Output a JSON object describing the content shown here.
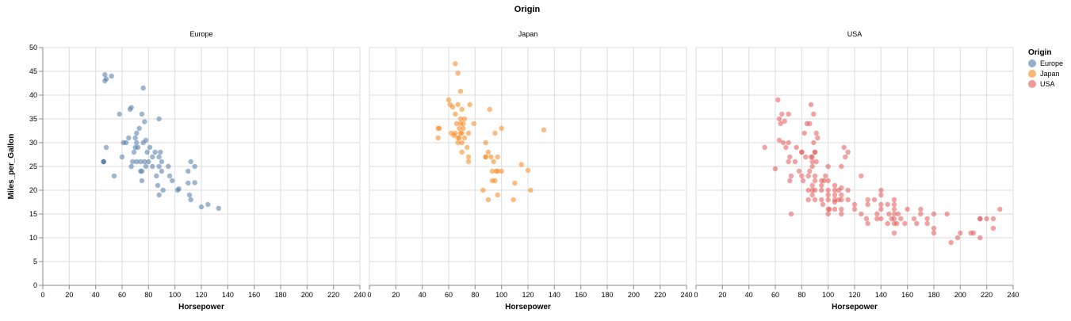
{
  "chart_data": {
    "type": "scatter",
    "title": "Origin",
    "facet_field": "Origin",
    "xlabel": "Horsepower",
    "ylabel": "Miles_per_Gallon",
    "xlim": [
      0,
      240
    ],
    "ylim": [
      0,
      50
    ],
    "x_ticks": [
      0,
      20,
      40,
      60,
      80,
      100,
      120,
      140,
      160,
      180,
      200,
      220,
      240
    ],
    "y_ticks": [
      0,
      5,
      10,
      15,
      20,
      25,
      30,
      35,
      40,
      45,
      50
    ],
    "grid": true,
    "legend": {
      "title": "Origin",
      "placement": "right",
      "items": [
        {
          "label": "Europe",
          "color": "#4c78a8"
        },
        {
          "label": "Japan",
          "color": "#f58518"
        },
        {
          "label": "USA",
          "color": "#e45756"
        }
      ]
    },
    "series": [
      {
        "name": "Europe",
        "color": "#4c78a8",
        "points": [
          [
            46,
            26
          ],
          [
            46,
            26
          ],
          [
            46,
            26
          ],
          [
            47,
            43
          ],
          [
            47,
            44.3
          ],
          [
            48,
            43.4
          ],
          [
            48,
            29
          ],
          [
            52,
            44
          ],
          [
            54,
            23
          ],
          [
            58,
            36
          ],
          [
            60,
            27
          ],
          [
            61,
            30
          ],
          [
            63,
            30
          ],
          [
            65,
            31
          ],
          [
            66,
            37
          ],
          [
            67,
            37.4
          ],
          [
            67,
            25
          ],
          [
            68,
            26
          ],
          [
            69,
            28
          ],
          [
            70,
            31
          ],
          [
            70,
            29
          ],
          [
            71,
            30
          ],
          [
            71,
            32
          ],
          [
            71,
            26
          ],
          [
            72,
            29
          ],
          [
            73,
            33
          ],
          [
            74,
            26
          ],
          [
            74,
            24
          ],
          [
            75,
            24
          ],
          [
            75,
            22
          ],
          [
            75,
            36
          ],
          [
            76,
            30
          ],
          [
            76,
            41.5
          ],
          [
            77,
            26
          ],
          [
            77,
            34.4
          ],
          [
            78,
            30.5
          ],
          [
            78,
            25
          ],
          [
            79,
            28
          ],
          [
            80,
            26
          ],
          [
            81,
            29
          ],
          [
            83,
            25
          ],
          [
            83,
            27
          ],
          [
            85,
            28
          ],
          [
            86,
            23
          ],
          [
            87,
            21
          ],
          [
            88,
            35
          ],
          [
            88,
            19
          ],
          [
            88,
            27
          ],
          [
            88,
            25
          ],
          [
            89,
            28
          ],
          [
            90,
            26
          ],
          [
            90,
            24
          ],
          [
            91,
            20
          ],
          [
            95,
            25
          ],
          [
            96,
            23
          ],
          [
            98,
            22
          ],
          [
            102,
            20
          ],
          [
            103,
            20.3
          ],
          [
            110,
            24
          ],
          [
            110,
            21.5
          ],
          [
            111,
            19
          ],
          [
            112,
            18
          ],
          [
            112,
            26
          ],
          [
            115,
            25
          ],
          [
            115,
            21.6
          ],
          [
            120,
            16.5
          ],
          [
            125,
            17
          ],
          [
            133,
            16.2
          ]
        ]
      },
      {
        "name": "Japan",
        "color": "#f58518",
        "points": [
          [
            52,
            31
          ],
          [
            52,
            33
          ],
          [
            53,
            33
          ],
          [
            60,
            39
          ],
          [
            61,
            38
          ],
          [
            62,
            32
          ],
          [
            63,
            37.5
          ],
          [
            64,
            31.5
          ],
          [
            65,
            46.6
          ],
          [
            65,
            36
          ],
          [
            65,
            32
          ],
          [
            66,
            34
          ],
          [
            67,
            44.6
          ],
          [
            67,
            38
          ],
          [
            67,
            31
          ],
          [
            67,
            30
          ],
          [
            68,
            33
          ],
          [
            68,
            31
          ],
          [
            69,
            40.8
          ],
          [
            69,
            34
          ],
          [
            69,
            32
          ],
          [
            69,
            35
          ],
          [
            70,
            32
          ],
          [
            70,
            37
          ],
          [
            70,
            30
          ],
          [
            70,
            28
          ],
          [
            71,
            34
          ],
          [
            71,
            33
          ],
          [
            72,
            35
          ],
          [
            72,
            31
          ],
          [
            74,
            29
          ],
          [
            75,
            27
          ],
          [
            75,
            26
          ],
          [
            75,
            32
          ],
          [
            76,
            38
          ],
          [
            79,
            34
          ],
          [
            86,
            20
          ],
          [
            88,
            27
          ],
          [
            88,
            27
          ],
          [
            88,
            30
          ],
          [
            90,
            28
          ],
          [
            90,
            18
          ],
          [
            91,
            37
          ],
          [
            92,
            27
          ],
          [
            93,
            22
          ],
          [
            93,
            24
          ],
          [
            94,
            26
          ],
          [
            95,
            22
          ],
          [
            95,
            32
          ],
          [
            96,
            24
          ],
          [
            97,
            24
          ],
          [
            97,
            19
          ],
          [
            97,
            27
          ],
          [
            100,
            33
          ],
          [
            100,
            24
          ],
          [
            109,
            18
          ],
          [
            110,
            21.5
          ],
          [
            115,
            25.4
          ],
          [
            120,
            24.2
          ],
          [
            122,
            20
          ],
          [
            132,
            32.7
          ]
        ]
      },
      {
        "name": "USA",
        "color": "#e45756",
        "points": [
          [
            52,
            29
          ],
          [
            60,
            24.5
          ],
          [
            62,
            39
          ],
          [
            63,
            35
          ],
          [
            63,
            30.5
          ],
          [
            64,
            34
          ],
          [
            65,
            36
          ],
          [
            66,
            30
          ],
          [
            67,
            34.5
          ],
          [
            68,
            29
          ],
          [
            70,
            36
          ],
          [
            70,
            30
          ],
          [
            70,
            26
          ],
          [
            71,
            27
          ],
          [
            71,
            22
          ],
          [
            72,
            15
          ],
          [
            72,
            23
          ],
          [
            75,
            26
          ],
          [
            76,
            29
          ],
          [
            78,
            24
          ],
          [
            80,
            28
          ],
          [
            80,
            28
          ],
          [
            80,
            23
          ],
          [
            81,
            22
          ],
          [
            82,
            32
          ],
          [
            83,
            27
          ],
          [
            84,
            34
          ],
          [
            85,
            23
          ],
          [
            85,
            18
          ],
          [
            85,
            20
          ],
          [
            86,
            34
          ],
          [
            86,
            24
          ],
          [
            87,
            38
          ],
          [
            87,
            27
          ],
          [
            88,
            25
          ],
          [
            88,
            26
          ],
          [
            88,
            19
          ],
          [
            88,
            20
          ],
          [
            88,
            21
          ],
          [
            88,
            27
          ],
          [
            89,
            36
          ],
          [
            89,
            30
          ],
          [
            90,
            28
          ],
          [
            90,
            23
          ],
          [
            90,
            20
          ],
          [
            90,
            22
          ],
          [
            90,
            28
          ],
          [
            90,
            18
          ],
          [
            91,
            26
          ],
          [
            91,
            32
          ],
          [
            92,
            31
          ],
          [
            95,
            22
          ],
          [
            95,
            21
          ],
          [
            95,
            20
          ],
          [
            95,
            18
          ],
          [
            96,
            17
          ],
          [
            97,
            22
          ],
          [
            98,
            23
          ],
          [
            100,
            16
          ],
          [
            100,
            15
          ],
          [
            100,
            19
          ],
          [
            100,
            22
          ],
          [
            100,
            18
          ],
          [
            100,
            20
          ],
          [
            100,
            25
          ],
          [
            101,
            16
          ],
          [
            105,
            18
          ],
          [
            105,
            20
          ],
          [
            105,
            21
          ],
          [
            105,
            19
          ],
          [
            105,
            16
          ],
          [
            105,
            17.5
          ],
          [
            108,
            20
          ],
          [
            108,
            18
          ],
          [
            110,
            19
          ],
          [
            110,
            20.5
          ],
          [
            110,
            16
          ],
          [
            110,
            15
          ],
          [
            110,
            25
          ],
          [
            110,
            18
          ],
          [
            112,
            29
          ],
          [
            113,
            27
          ],
          [
            115,
            28
          ],
          [
            115,
            18
          ],
          [
            115,
            20
          ],
          [
            120,
            16
          ],
          [
            120,
            17
          ],
          [
            125,
            23
          ],
          [
            125,
            15
          ],
          [
            129,
            14
          ],
          [
            130,
            18
          ],
          [
            130,
            13
          ],
          [
            130,
            17
          ],
          [
            135,
            18
          ],
          [
            137,
            14
          ],
          [
            137,
            15
          ],
          [
            140,
            20
          ],
          [
            140,
            17
          ],
          [
            140,
            16
          ],
          [
            140,
            19
          ],
          [
            140,
            14
          ],
          [
            145,
            13
          ],
          [
            145,
            17
          ],
          [
            146,
            15
          ],
          [
            148,
            14
          ],
          [
            150,
            13
          ],
          [
            150,
            15
          ],
          [
            150,
            14
          ],
          [
            150,
            16
          ],
          [
            150,
            17
          ],
          [
            150,
            18
          ],
          [
            150,
            11
          ],
          [
            152,
            13
          ],
          [
            153,
            15
          ],
          [
            155,
            14
          ],
          [
            158,
            13
          ],
          [
            160,
            16
          ],
          [
            165,
            14
          ],
          [
            167,
            13
          ],
          [
            170,
            15
          ],
          [
            170,
            16
          ],
          [
            175,
            13
          ],
          [
            175,
            14
          ],
          [
            180,
            12
          ],
          [
            180,
            11
          ],
          [
            180,
            15
          ],
          [
            190,
            15
          ],
          [
            193,
            9
          ],
          [
            198,
            10
          ],
          [
            200,
            11
          ],
          [
            208,
            11
          ],
          [
            210,
            11
          ],
          [
            215,
            10
          ],
          [
            215,
            14
          ],
          [
            215,
            14
          ],
          [
            220,
            14
          ],
          [
            225,
            12
          ],
          [
            225,
            14
          ],
          [
            230,
            16
          ]
        ]
      }
    ]
  }
}
